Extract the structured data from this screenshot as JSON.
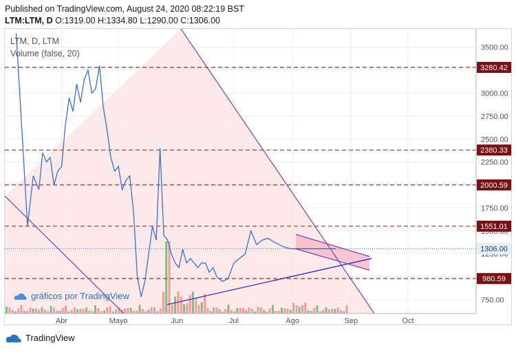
{
  "header": {
    "published": "Published on TradingView.com, August 24, 2020 08:22:19 BST",
    "symbol": "LTM:LTM, D",
    "open_label": "O:",
    "open": "1319.00",
    "high_label": "H:",
    "high": "1334.80",
    "low_label": "L:",
    "low": "1290.00",
    "close_label": "C:",
    "close": "1306.00"
  },
  "legend": {
    "line1": "LTM, D, LTM",
    "line2": "Volume (false, 20)"
  },
  "watermark": "gráficos por TradingView",
  "footer": "TradingView",
  "colors": {
    "price_line": "#3a6fd1",
    "level_line": "#8b1a1a",
    "level_tag": "#7a0f14",
    "last_price_tag": "#e6eef9",
    "last_price_text": "#1e3c6e",
    "trend_purple": "#7b3fb0",
    "trend_blue": "#2a2ad6",
    "zone_fill": "#fbe3e3",
    "vol_up": "#6fb36f",
    "vol_down": "#f28c8c"
  },
  "chart_data": {
    "type": "line",
    "ylim": [
      600,
      3700
    ],
    "y_ticks": [
      750,
      1000,
      1250,
      1500,
      1750,
      2000,
      2250,
      2500,
      2750,
      3000,
      3250,
      3500
    ],
    "y_tick_labels": [
      "750.00",
      "1000.00",
      "1250.00",
      "1500.00",
      "1750.00",
      "2000.00",
      "2250.00",
      "2500.00",
      "2750.00",
      "3000.00",
      "3250.00",
      "3500.00"
    ],
    "x_range": [
      "2020-03-02",
      "2020-11-06"
    ],
    "x_ticks": [
      {
        "date": "2020-04-01",
        "label": "Abr"
      },
      {
        "date": "2020-05-01",
        "label": "Mayo"
      },
      {
        "date": "2020-06-01",
        "label": "Jun"
      },
      {
        "date": "2020-07-01",
        "label": "Jul"
      },
      {
        "date": "2020-08-01",
        "label": "Ago"
      },
      {
        "date": "2020-09-01",
        "label": "Sep"
      },
      {
        "date": "2020-10-01",
        "label": "Oct"
      }
    ],
    "levels": [
      {
        "value": 3280.42,
        "label": "3280.42"
      },
      {
        "value": 2380.33,
        "label": "2380.33"
      },
      {
        "value": 2000.59,
        "label": "2000.59"
      },
      {
        "value": 1551.01,
        "label": "1551.01"
      },
      {
        "value": 980.59,
        "label": "980.59"
      }
    ],
    "last_price": {
      "value": 1306.0,
      "label": "1306.00"
    },
    "series": [
      {
        "x": [
          "2020-03-08",
          "2020-03-11",
          "2020-03-14",
          "2020-03-17",
          "2020-03-20",
          "2020-03-22",
          "2020-03-24",
          "2020-03-26",
          "2020-03-28",
          "2020-03-30",
          "2020-04-01",
          "2020-04-03",
          "2020-04-05",
          "2020-04-07",
          "2020-04-09",
          "2020-04-11",
          "2020-04-13",
          "2020-04-15",
          "2020-04-17",
          "2020-04-19",
          "2020-04-21",
          "2020-04-23",
          "2020-04-25",
          "2020-04-27",
          "2020-04-29",
          "2020-05-01",
          "2020-05-03",
          "2020-05-05",
          "2020-05-07",
          "2020-05-09",
          "2020-05-11",
          "2020-05-13",
          "2020-05-15",
          "2020-05-17",
          "2020-05-19",
          "2020-05-21",
          "2020-05-23",
          "2020-05-25",
          "2020-05-27",
          "2020-05-29",
          "2020-05-31",
          "2020-06-02",
          "2020-06-04",
          "2020-06-06",
          "2020-06-08",
          "2020-06-10",
          "2020-06-12",
          "2020-06-14",
          "2020-06-16",
          "2020-06-18",
          "2020-06-20",
          "2020-06-22",
          "2020-06-25",
          "2020-06-28",
          "2020-07-01",
          "2020-07-04",
          "2020-07-07",
          "2020-07-10",
          "2020-07-13",
          "2020-07-16",
          "2020-07-19",
          "2020-07-22",
          "2020-07-25",
          "2020-07-28",
          "2020-07-31",
          "2020-08-03",
          "2020-08-06",
          "2020-08-09",
          "2020-08-12",
          "2020-08-15",
          "2020-08-18",
          "2020-08-21",
          "2020-08-24"
        ],
        "y": [
          3650,
          2600,
          1550,
          2100,
          1950,
          2350,
          2250,
          2300,
          2000,
          2150,
          2200,
          2650,
          2950,
          2800,
          3100,
          2900,
          3150,
          3250,
          3000,
          3050,
          3300,
          2850,
          2600,
          2300,
          2150,
          2200,
          1950,
          2050,
          2100,
          1700,
          1000,
          780,
          950,
          1250,
          1550,
          1400,
          2400,
          1450,
          1400,
          1250,
          1150,
          1100,
          1300,
          1150,
          1200,
          1150,
          1100,
          1150,
          1150,
          1050,
          1100,
          1000,
          950,
          980,
          1150,
          1200,
          1250,
          1500,
          1350,
          1400,
          1420,
          1380,
          1350,
          1320,
          1306,
          1306,
          1306,
          1306,
          1306,
          1306,
          1306,
          1306,
          1306
        ]
      }
    ]
  }
}
